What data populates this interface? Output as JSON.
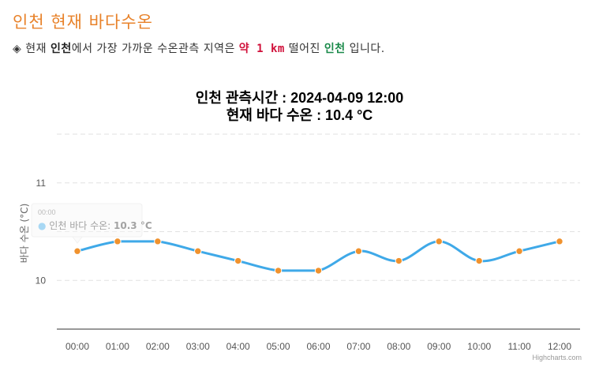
{
  "page": {
    "title": "인천 현재 바다수온",
    "info": {
      "bullet": "◈",
      "part1": "현재",
      "current_location": "인천",
      "part2": "에서 가장 가까운 수온관측 지역은",
      "distance": "약 1 km",
      "part3": "떨어진",
      "station": "인천",
      "part4": "입니다."
    }
  },
  "chart_data": {
    "type": "line",
    "title_line1": "인천 관측시간 : 2024-04-09 12:00",
    "title_line2": "현재 바다 수온 : 10.4 °C",
    "ylabel": "바다 수온 (°C)",
    "xlabel": "",
    "categories": [
      "00:00",
      "01:00",
      "02:00",
      "03:00",
      "04:00",
      "05:00",
      "06:00",
      "07:00",
      "08:00",
      "09:00",
      "10:00",
      "11:00",
      "12:00"
    ],
    "series": [
      {
        "name": "인천 바다 수온",
        "values": [
          10.3,
          10.4,
          10.4,
          10.3,
          10.2,
          10.1,
          10.1,
          10.3,
          10.2,
          10.4,
          10.2,
          10.3,
          10.4
        ]
      }
    ],
    "yticks": [
      10,
      11
    ],
    "ylim": [
      9.5,
      11.5
    ],
    "grid": true,
    "line_color": "#3fa9e8",
    "marker_color": "#f0922e",
    "tooltip": {
      "series": "인천 바다 수온",
      "value": "10.3 °C",
      "header": "00:00"
    },
    "credits": "Highcharts.com"
  }
}
